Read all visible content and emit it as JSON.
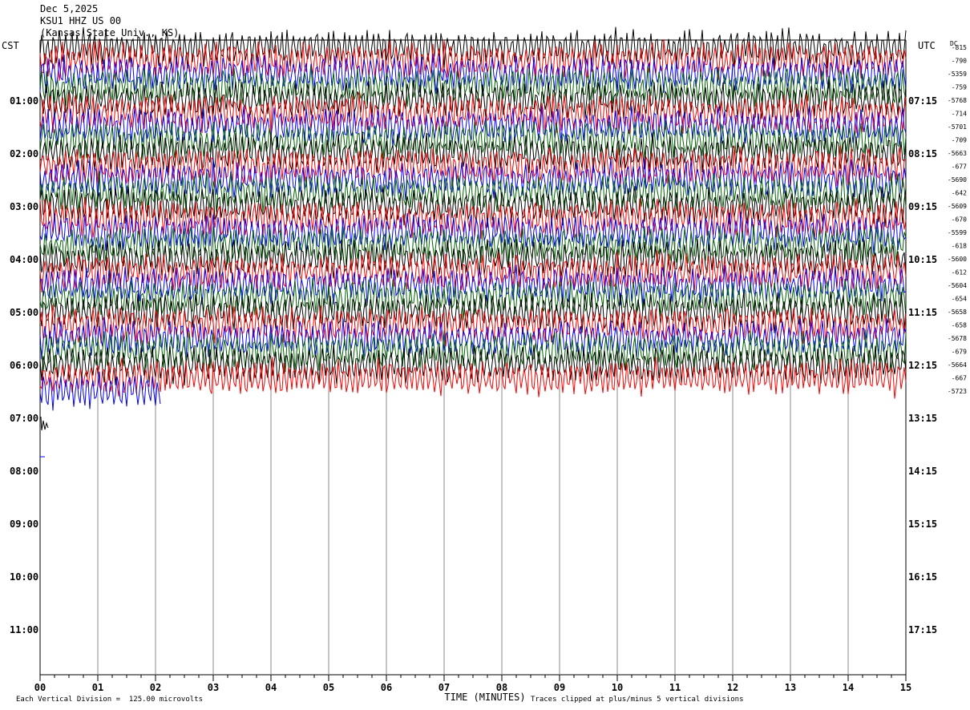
{
  "header": {
    "date": "Dec 5,2025",
    "station": "KSU1 HHZ US 00",
    "location": "(Kansas State Univ., KS)"
  },
  "left_axis_title": "CST",
  "right_axis_title": "UTC",
  "dc_title": "DC",
  "footer": {
    "scale_note": "Each Vertical Division =  125.00 microvolts",
    "clip_note": "Traces clipped at plus/minus 5 vertical divisions"
  },
  "chart_data": {
    "type": "line",
    "title": "",
    "xlabel": "TIME (MINUTES)",
    "ylabel": "",
    "xlim": [
      0,
      15
    ],
    "x_ticks": [
      "00",
      "01",
      "02",
      "03",
      "04",
      "05",
      "06",
      "07",
      "08",
      "09",
      "10",
      "11",
      "12",
      "13",
      "14",
      "15"
    ],
    "left_hour_labels": [
      "01:00",
      "02:00",
      "03:00",
      "04:00",
      "05:00",
      "06:00",
      "07:00",
      "08:00",
      "09:00",
      "10:00",
      "11:00"
    ],
    "right_hour_labels": [
      "07:15",
      "08:15",
      "09:15",
      "10:15",
      "11:15",
      "12:15",
      "13:15",
      "14:15",
      "15:15",
      "16:15",
      "17:15"
    ],
    "trace_colors": [
      "#000000",
      "#ff0000",
      "#0000ff",
      "#006400"
    ],
    "trace_interval_minutes": 15,
    "traces_with_data": 27,
    "last_trace_end_minute": 2.1,
    "dc_offsets": [
      "-815",
      "-790",
      "-5359",
      "-759",
      "-5768",
      "-714",
      "-5701",
      "-709",
      "-5663",
      "-677",
      "-5690",
      "-642",
      "-5609",
      "-670",
      "-5599",
      "-618",
      "-5600",
      "-612",
      "-5604",
      "-654",
      "-5658",
      "-658",
      "-5678",
      "-679",
      "-5664",
      "-667",
      "-5723"
    ],
    "grid": "vertical minute lines"
  }
}
